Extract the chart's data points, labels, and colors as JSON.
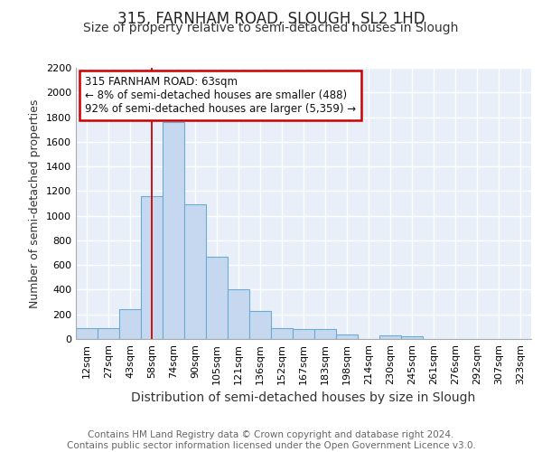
{
  "title1": "315, FARNHAM ROAD, SLOUGH, SL2 1HD",
  "title2": "Size of property relative to semi-detached houses in Slough",
  "xlabel": "Distribution of semi-detached houses by size in Slough",
  "ylabel": "Number of semi-detached properties",
  "categories": [
    "12sqm",
    "27sqm",
    "43sqm",
    "58sqm",
    "74sqm",
    "90sqm",
    "105sqm",
    "121sqm",
    "136sqm",
    "152sqm",
    "167sqm",
    "183sqm",
    "198sqm",
    "214sqm",
    "230sqm",
    "245sqm",
    "261sqm",
    "276sqm",
    "292sqm",
    "307sqm",
    "323sqm"
  ],
  "values": [
    90,
    90,
    240,
    1160,
    1760,
    1090,
    670,
    400,
    230,
    90,
    80,
    80,
    35,
    0,
    30,
    20,
    0,
    0,
    0,
    0,
    0
  ],
  "bar_color": "#c5d8f0",
  "bar_edge_color": "#6aabd2",
  "background_color": "#e8eff8",
  "grid_color": "#ffffff",
  "red_line_x": 3.0,
  "annotation_text": "315 FARNHAM ROAD: 63sqm\n← 8% of semi-detached houses are smaller (488)\n92% of semi-detached houses are larger (5,359) →",
  "annotation_box_color": "#ffffff",
  "annotation_border_color": "#cc0000",
  "ylim": [
    0,
    2200
  ],
  "yticks": [
    0,
    200,
    400,
    600,
    800,
    1000,
    1200,
    1400,
    1600,
    1800,
    2000,
    2200
  ],
  "footer_text": "Contains HM Land Registry data © Crown copyright and database right 2024.\nContains public sector information licensed under the Open Government Licence v3.0.",
  "title1_fontsize": 12,
  "title2_fontsize": 10,
  "xlabel_fontsize": 10,
  "ylabel_fontsize": 9,
  "tick_fontsize": 8,
  "annotation_fontsize": 8.5,
  "footer_fontsize": 7.5
}
